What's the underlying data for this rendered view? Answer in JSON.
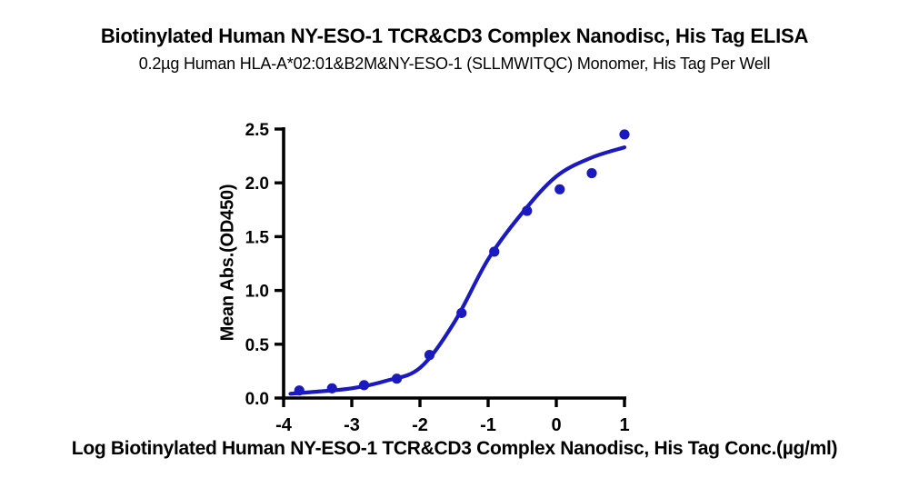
{
  "figure": {
    "title": "Biotinylated Human NY-ESO-1 TCR&CD3 Complex Nanodisc, His Tag ELISA",
    "subtitle": "0.2µg Human HLA-A*02:01&B2M&NY-ESO-1 (SLLMWITQC) Monomer, His Tag Per Well"
  },
  "chart_data": {
    "type": "scatter",
    "title": "Biotinylated Human NY-ESO-1 TCR&CD3 Complex Nanodisc, His Tag ELISA",
    "subtitle": "0.2µg Human HLA-A*02:01&B2M&NY-ESO-1 (SLLMWITQC) Monomer, His Tag Per Well",
    "xlabel": "Log Biotinylated Human NY-ESO-1 TCR&CD3 Complex Nanodisc, His Tag Conc.(µg/ml)",
    "ylabel": "Mean Abs.(OD450)",
    "xlim": [
      -4,
      1
    ],
    "ylim": [
      0,
      2.5
    ],
    "x_ticks": [
      -4,
      -3,
      -2,
      -1,
      0,
      1
    ],
    "x_tick_labels": [
      "-4",
      "-3",
      "-2",
      "-1",
      "0",
      "1"
    ],
    "y_ticks": [
      0,
      0.5,
      1.0,
      1.5,
      2.0,
      2.5
    ],
    "y_tick_labels": [
      "0.0",
      "0.5",
      "1.0",
      "1.5",
      "2.0",
      "2.5"
    ],
    "grid": false,
    "legend": "none",
    "marker_color": "#1a1ac0",
    "curve_color": "#1a1ac0",
    "axis_color": "#000000",
    "points": [
      {
        "x": -3.77,
        "y": 0.07
      },
      {
        "x": -3.29,
        "y": 0.09
      },
      {
        "x": -2.82,
        "y": 0.12
      },
      {
        "x": -2.34,
        "y": 0.18
      },
      {
        "x": -1.86,
        "y": 0.4
      },
      {
        "x": -1.39,
        "y": 0.79
      },
      {
        "x": -0.91,
        "y": 1.36
      },
      {
        "x": -0.43,
        "y": 1.74
      },
      {
        "x": 0.05,
        "y": 1.94
      },
      {
        "x": 0.52,
        "y": 2.09
      },
      {
        "x": 1.0,
        "y": 2.45
      }
    ],
    "fit_curve": {
      "description": "4PL sigmoidal dose-response fit",
      "samples": [
        [
          -3.9,
          0.04
        ],
        [
          -3.5,
          0.06
        ],
        [
          -3.0,
          0.09
        ],
        [
          -2.5,
          0.16
        ],
        [
          -2.0,
          0.28
        ],
        [
          -1.5,
          0.7
        ],
        [
          -1.0,
          1.29
        ],
        [
          -0.5,
          1.72
        ],
        [
          0.0,
          2.06
        ],
        [
          0.5,
          2.23
        ],
        [
          1.0,
          2.33
        ]
      ]
    }
  }
}
